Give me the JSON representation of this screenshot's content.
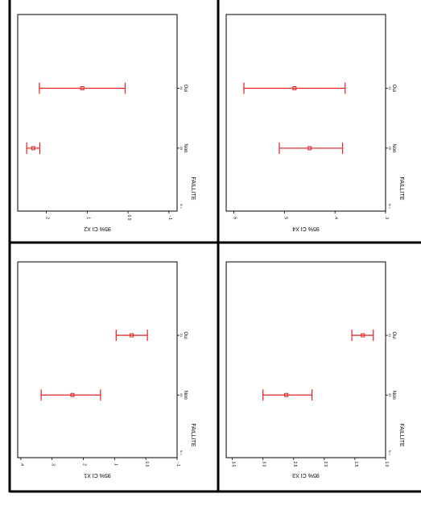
{
  "chart_data": [
    {
      "type": "errorbar",
      "panel": "X2",
      "ylabel": "95% CI X2",
      "xlabel": "FAILLITE",
      "n_prefix": "N =",
      "categories": [
        "Non",
        "Oui"
      ],
      "n": [
        "25",
        "21"
      ],
      "ticks": [
        "-.1",
        "0.0",
        ".1",
        ".2"
      ],
      "ylim": [
        -0.12,
        0.27
      ],
      "points": [
        {
          "category": "Non",
          "mean": 0.232,
          "lower": 0.216,
          "upper": 0.248
        },
        {
          "category": "Oui",
          "mean": 0.112,
          "lower": 0.007,
          "upper": 0.217
        }
      ]
    },
    {
      "type": "errorbar",
      "panel": "X4",
      "ylabel": "95% CI X4",
      "xlabel": "FAILLITE",
      "n_prefix": "N =",
      "categories": [
        "Non",
        "Oui"
      ],
      "n": [
        "25",
        "21"
      ],
      "ticks": [
        ".3",
        ".4",
        ".5",
        ".6"
      ],
      "ylim": [
        0.3,
        0.615
      ],
      "points": [
        {
          "category": "Non",
          "mean": 0.45,
          "lower": 0.385,
          "upper": 0.51
        },
        {
          "category": "Oui",
          "mean": 0.48,
          "lower": 0.38,
          "upper": 0.58
        }
      ]
    },
    {
      "type": "errorbar",
      "panel": "X1",
      "ylabel": "95% CI X1",
      "xlabel": "FAILLITE",
      "n_prefix": "N =",
      "categories": [
        "Non",
        "Oui"
      ],
      "n": [
        "25",
        "21"
      ],
      "ticks": [
        "-.1",
        "0.0",
        ".1",
        ".2",
        ".3",
        ".4"
      ],
      "ylim": [
        -0.1,
        0.41
      ],
      "points": [
        {
          "category": "Non",
          "mean": 0.235,
          "lower": 0.145,
          "upper": 0.335
        },
        {
          "category": "Oui",
          "mean": 0.045,
          "lower": -0.005,
          "upper": 0.095
        }
      ]
    },
    {
      "type": "errorbar",
      "panel": "X3",
      "ylabel": "95% CI X3",
      "xlabel": "FAILLITE",
      "n_prefix": "N =",
      "categories": [
        "Non",
        "Oui"
      ],
      "n": [
        "25",
        "21"
      ],
      "ticks": [
        "1.0",
        "1.5",
        "2.0",
        "2.5",
        "3.0",
        "3.5"
      ],
      "ylim": [
        1.0,
        3.6
      ],
      "points": [
        {
          "category": "Non",
          "mean": 2.62,
          "lower": 2.2,
          "upper": 3.0
        },
        {
          "category": "Oui",
          "mean": 1.37,
          "lower": 1.2,
          "upper": 1.55
        }
      ]
    }
  ],
  "colors": {
    "series": "#e02020",
    "frame": "#000000"
  }
}
